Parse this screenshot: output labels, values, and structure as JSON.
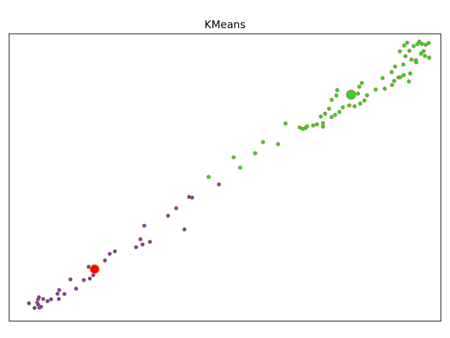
{
  "chart_data": {
    "type": "scatter",
    "title": "KMeans",
    "xlabel": "",
    "ylabel": "",
    "xlim": [
      0,
      100
    ],
    "ylim": [
      0,
      100
    ],
    "axes_ticks_visible": false,
    "grid": false,
    "legend": "none",
    "series": [
      {
        "color": "#5a4fa8",
        "edgecolor": "#d9534f",
        "points": [
          [
            4.6,
            6.2
          ],
          [
            5.9,
            4.6
          ],
          [
            6.7,
            7.6
          ],
          [
            6.5,
            6.4
          ],
          [
            7.0,
            4.7
          ],
          [
            7.4,
            5.0
          ],
          [
            6.7,
            5.8
          ],
          [
            7.9,
            7.7
          ],
          [
            6.9,
            8.3
          ],
          [
            8.9,
            6.9
          ],
          [
            9.7,
            7.6
          ],
          [
            11.2,
            9.5
          ],
          [
            11.5,
            7.7
          ],
          [
            11.6,
            10.8
          ],
          [
            12.8,
            9.4
          ],
          [
            14.2,
            14.5
          ],
          [
            15.5,
            11.3
          ],
          [
            17.3,
            14.3
          ],
          [
            18.7,
            14.8
          ],
          [
            19.5,
            16.0
          ],
          [
            18.4,
            18.9
          ],
          [
            20.3,
            18.3
          ],
          [
            22.2,
            21.1
          ],
          [
            23.3,
            23.4
          ],
          [
            24.5,
            24.3
          ],
          [
            29.4,
            25.7
          ],
          [
            30.4,
            28.5
          ],
          [
            30.9,
            26.7
          ],
          [
            31.3,
            33.2
          ],
          [
            32.6,
            27.6
          ],
          [
            36.8,
            36.7
          ],
          [
            38.7,
            39.3
          ],
          [
            40.6,
            31.9
          ],
          [
            41.7,
            43.2
          ],
          [
            42.4,
            43.0
          ],
          [
            48.6,
            47.6
          ]
        ]
      },
      {
        "color": "#22dd22",
        "edgecolor": "#d9534f",
        "points": [
          [
            46.2,
            50.2
          ],
          [
            53.5,
            53.4
          ],
          [
            52.0,
            57.0
          ],
          [
            57.0,
            58.4
          ],
          [
            58.8,
            62.3
          ],
          [
            62.3,
            61.6
          ],
          [
            64.0,
            68.8
          ],
          [
            67.3,
            67.4
          ],
          [
            68.0,
            66.9
          ],
          [
            68.6,
            67.2
          ],
          [
            69.0,
            67.8
          ],
          [
            70.4,
            68.1
          ],
          [
            71.3,
            68.5
          ],
          [
            72.7,
            68.9
          ],
          [
            72.7,
            67.7
          ],
          [
            72.2,
            71.2
          ],
          [
            73.2,
            72.2
          ],
          [
            74.1,
            73.9
          ],
          [
            74.7,
            71.0
          ],
          [
            75.5,
            71.8
          ],
          [
            76.5,
            72.8
          ],
          [
            77.3,
            74.4
          ],
          [
            74.7,
            77.0
          ],
          [
            75.8,
            78.5
          ],
          [
            78.8,
            75.1
          ],
          [
            80.0,
            74.8
          ],
          [
            81.3,
            75.7
          ],
          [
            82.3,
            76.8
          ],
          [
            82.9,
            78.6
          ],
          [
            80.8,
            79.2
          ],
          [
            76.0,
            80.4
          ],
          [
            81.1,
            81.6
          ],
          [
            81.7,
            82.9
          ],
          [
            84.9,
            80.6
          ],
          [
            87.0,
            80.9
          ],
          [
            86.5,
            84.6
          ],
          [
            88.7,
            82.2
          ],
          [
            89.2,
            83.6
          ],
          [
            90.2,
            84.8
          ],
          [
            90.6,
            84.9
          ],
          [
            91.4,
            85.6
          ],
          [
            92.6,
            83.4
          ],
          [
            92.9,
            86.2
          ],
          [
            88.6,
            86.7
          ],
          [
            89.4,
            88.6
          ],
          [
            91.3,
            89.3
          ],
          [
            94.3,
            90.1
          ],
          [
            93.2,
            91.0
          ],
          [
            91.8,
            92.2
          ],
          [
            92.7,
            94.1
          ],
          [
            94.2,
            90.8
          ],
          [
            96.3,
            92.3
          ],
          [
            97.3,
            91.7
          ],
          [
            95.4,
            93.1
          ],
          [
            96.0,
            94.0
          ],
          [
            91.5,
            95.9
          ],
          [
            92.2,
            96.9
          ],
          [
            93.7,
            95.7
          ],
          [
            94.6,
            96.4
          ],
          [
            95.0,
            97.3
          ],
          [
            95.6,
            96.5
          ],
          [
            96.5,
            96.2
          ],
          [
            97.2,
            96.8
          ],
          [
            90.5,
            93.9
          ]
        ]
      }
    ],
    "centroids": [
      {
        "x": 19.8,
        "y": 18.1,
        "color": "#ff0000",
        "edgecolor": "#f5a623"
      },
      {
        "x": 79.2,
        "y": 78.8,
        "color": "#22dd22",
        "edgecolor": "#d9534f"
      }
    ]
  }
}
